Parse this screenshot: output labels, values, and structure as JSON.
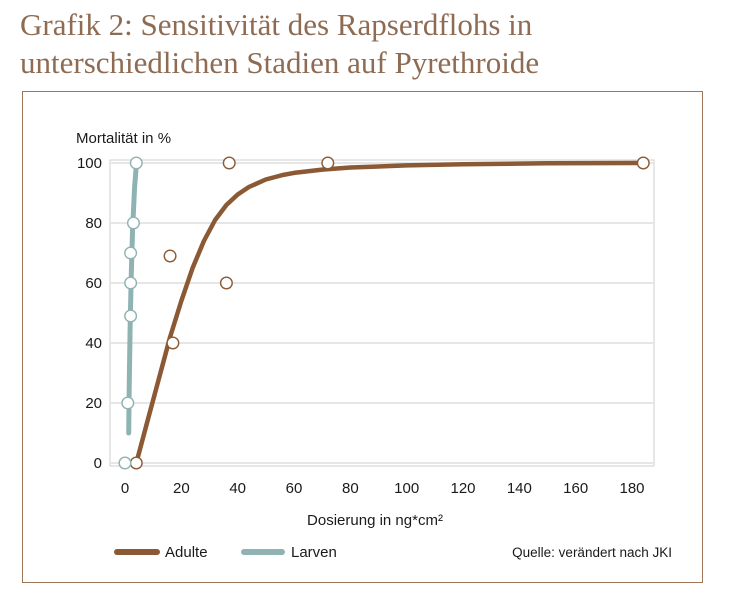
{
  "title_line1": "Grafik 2: Sensitivität des Rapserdflohs in",
  "title_line2": "unterschiedlichen Stadien auf Pyrethroide",
  "source": "Quelle: verändert nach JKI",
  "colors": {
    "adulte": "#8b5a34",
    "larven": "#8fb3b2",
    "frame": "#a0765a",
    "grid": "#d6d6d6",
    "title": "#8e6b52"
  },
  "chart_data": {
    "type": "scatter",
    "title": "Grafik 2: Sensitivität des Rapserdflohs in unterschiedlichen Stadien auf Pyrethroide",
    "xlabel": "Dosierung in ng*cm²",
    "ylabel": "Mortalität in %",
    "xlim": [
      0,
      190
    ],
    "ylim": [
      0,
      100
    ],
    "xticks": [
      0,
      20,
      40,
      60,
      80,
      100,
      120,
      140,
      160,
      180
    ],
    "yticks": [
      0,
      20,
      40,
      60,
      80,
      100
    ],
    "grid": "horizontal",
    "legend_position": "bottom-left",
    "series": [
      {
        "name": "Adulte",
        "points": [
          [
            4,
            0
          ],
          [
            17,
            40
          ],
          [
            16,
            69
          ],
          [
            36,
            60
          ],
          [
            37,
            100
          ],
          [
            72,
            100
          ],
          [
            184,
            100
          ]
        ],
        "curve": [
          [
            4,
            0
          ],
          [
            8,
            14
          ],
          [
            12,
            28
          ],
          [
            16,
            42
          ],
          [
            20,
            54
          ],
          [
            24,
            65
          ],
          [
            28,
            74
          ],
          [
            32,
            81
          ],
          [
            36,
            86
          ],
          [
            40,
            89.5
          ],
          [
            44,
            92
          ],
          [
            50,
            94.5
          ],
          [
            56,
            96
          ],
          [
            60,
            96.7
          ],
          [
            70,
            97.8
          ],
          [
            80,
            98.5
          ],
          [
            100,
            99.2
          ],
          [
            120,
            99.6
          ],
          [
            150,
            99.9
          ],
          [
            184,
            100
          ]
        ]
      },
      {
        "name": "Larven",
        "points": [
          [
            0,
            0
          ],
          [
            1,
            20
          ],
          [
            2,
            49
          ],
          [
            2,
            60
          ],
          [
            2,
            70
          ],
          [
            3,
            80
          ],
          [
            4,
            100
          ]
        ],
        "curve": [
          [
            1.3,
            10
          ],
          [
            1.5,
            25
          ],
          [
            1.8,
            45
          ],
          [
            2.2,
            62
          ],
          [
            2.7,
            78
          ],
          [
            3.4,
            92
          ],
          [
            4,
            99
          ]
        ]
      }
    ]
  }
}
